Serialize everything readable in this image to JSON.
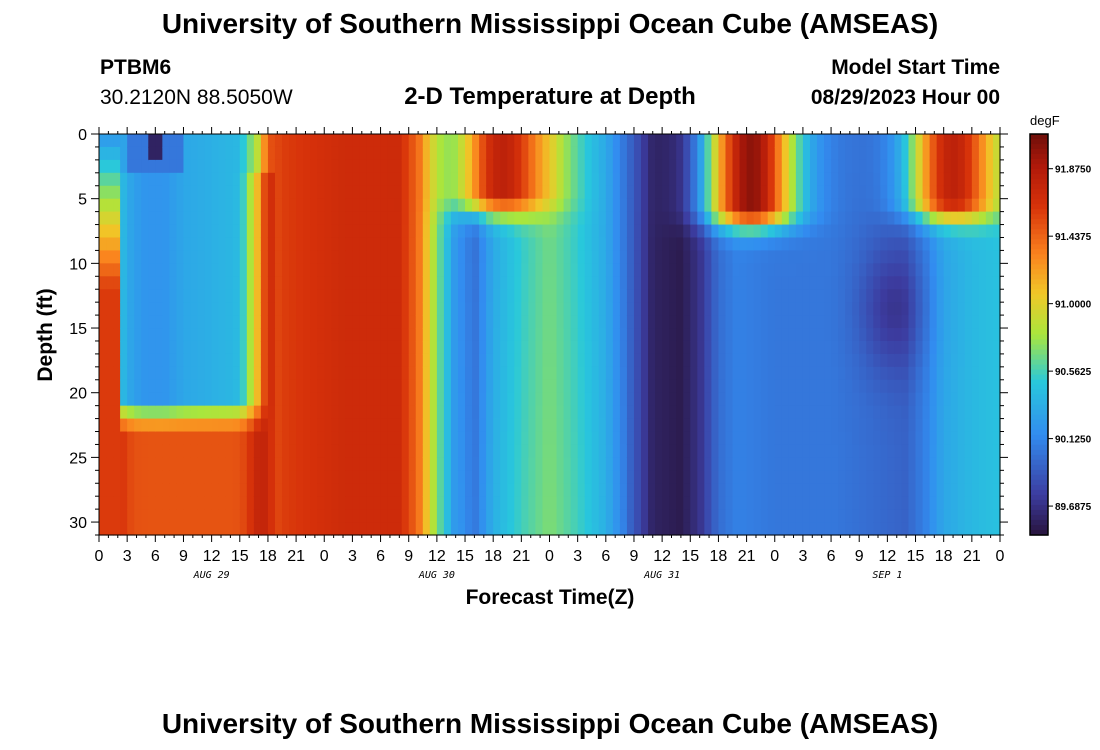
{
  "header": {
    "title_top": "University of Southern Mississippi Ocean Cube (AMSEAS)",
    "title_bottom": "University of Southern Mississippi Ocean Cube (AMSEAS)",
    "station_id": "PTBM6",
    "station_coords": "30.2120N  88.5050W",
    "plot_title": "2-D Temperature at Depth",
    "model_start_label": "Model Start Time",
    "model_start_value": "08/29/2023 Hour 00"
  },
  "chart_data": {
    "type": "heatmap",
    "title": "2-D Temperature at Depth",
    "xlabel": "Forecast Time(Z)",
    "ylabel": "Depth (ft)",
    "x_hours_range": [
      0,
      96
    ],
    "ylim": [
      0,
      31
    ],
    "y_ticks": [
      0,
      5,
      10,
      15,
      20,
      25,
      30
    ],
    "x_tick_labels": [
      "0",
      "3",
      "6",
      "9",
      "12",
      "15",
      "18",
      "21",
      "0",
      "3",
      "6",
      "9",
      "12",
      "15",
      "18",
      "21",
      "0",
      "3",
      "6",
      "9",
      "12",
      "15",
      "18",
      "21",
      "0",
      "3",
      "6",
      "9",
      "12",
      "15",
      "18",
      "21",
      "0"
    ],
    "day_labels": [
      {
        "label": "AUG 29",
        "hour": 12
      },
      {
        "label": "AUG 30",
        "hour": 36
      },
      {
        "label": "AUG 31",
        "hour": 60
      },
      {
        "label": "SEP 1",
        "hour": 84
      }
    ],
    "colorbar": {
      "unit": "degF",
      "min": 89.5,
      "max": 92.1,
      "tick_labels": [
        "91.8750",
        "91.4375",
        "91.0000",
        "90.5625",
        "90.1250",
        "89.6875"
      ],
      "tick_values": [
        91.875,
        91.4375,
        91.0,
        90.5625,
        90.125,
        89.6875
      ]
    },
    "surface_hot_blobs": [
      {
        "hour": 43,
        "width": 3.5,
        "depth": 4.5,
        "temp": 91.8
      },
      {
        "hour": 69.5,
        "width": 3.2,
        "depth": 5.5,
        "temp": 92.0
      },
      {
        "hour": 91,
        "width": 3.2,
        "depth": 5,
        "temp": 91.8
      }
    ],
    "series_note": "Temperature field (degF) by forecast hour (x) and depth in ft (y); columns show warm red early period, cooling cyan/blue bands and cold minimum near Aug 31 14Z."
  }
}
